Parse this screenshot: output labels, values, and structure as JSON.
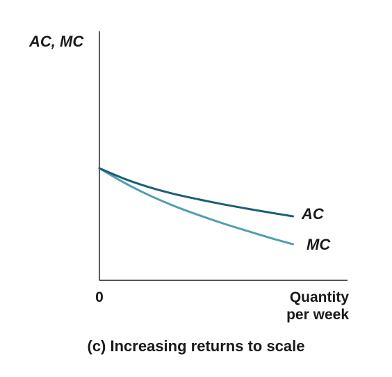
{
  "chart_data": {
    "type": "line",
    "ylabel": "AC, MC",
    "xlabel": [
      "Quantity",
      "per week"
    ],
    "origin_label": "0",
    "caption": "(c) Increasing returns to scale",
    "xlim": [
      0,
      10
    ],
    "ylim": [
      0,
      10
    ],
    "grid": false,
    "legend": "none",
    "series": [
      {
        "name": "AC",
        "color": "#1b5e75",
        "x": [
          0,
          1,
          2,
          3,
          4,
          5,
          6,
          7,
          7.8
        ],
        "y": [
          4.5,
          4.08,
          3.74,
          3.47,
          3.25,
          3.05,
          2.87,
          2.7,
          2.57
        ]
      },
      {
        "name": "MC",
        "color": "#4f9fae",
        "x": [
          0,
          1,
          2,
          3,
          4,
          5,
          6,
          7,
          7.8
        ],
        "y": [
          4.5,
          3.92,
          3.42,
          2.99,
          2.62,
          2.28,
          1.97,
          1.67,
          1.45
        ]
      }
    ]
  }
}
